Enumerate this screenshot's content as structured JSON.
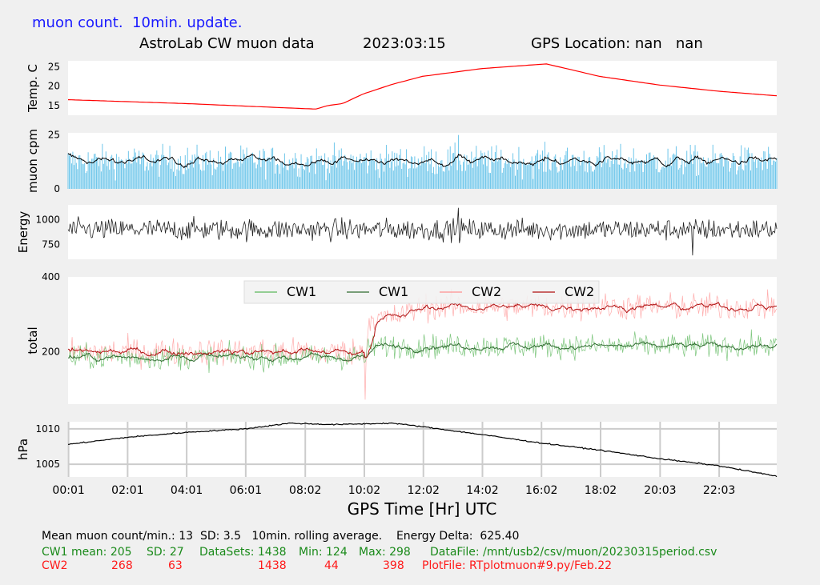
{
  "header": {
    "note": "muon count.  10min. update.",
    "title": "AstroLab CW muon data",
    "date": "2023:03:15",
    "gps": "GPS Location: nan   nan"
  },
  "colors": {
    "temp": "#ff0000",
    "muon_bar": "#6ec6ea",
    "muon_avg": "#000000",
    "energy": "#222222",
    "cw1_raw": "#5cb85c",
    "cw1_avg": "#2e6b2e",
    "cw2_raw": "#ff9090",
    "cw2_avg": "#b01010",
    "pressure": "#000000",
    "panel_bg": "#ffffff",
    "fig_bg": "#f0f0f0",
    "grid": "#cccccc"
  },
  "chart_data": [
    {
      "type": "line",
      "ylabel": "Temp. C",
      "yticks": [
        15,
        20,
        25
      ],
      "ylim": [
        12.5,
        26.5
      ],
      "xlim": [
        0,
        24
      ],
      "x": [
        0,
        4,
        8,
        8.4,
        8.8,
        9.3,
        10,
        11,
        12,
        14,
        16,
        16.2,
        18,
        20,
        22,
        24
      ],
      "y": [
        16.5,
        15.5,
        14.2,
        14.1,
        15,
        15.5,
        18,
        20.5,
        22.5,
        24.5,
        25.6,
        25.7,
        22.5,
        20.3,
        18.7,
        17.5
      ]
    },
    {
      "type": "bar",
      "ylabel": "muon cpm",
      "yticks": [
        0,
        25
      ],
      "ylim": [
        0,
        26
      ],
      "mean": 13,
      "sd": 3.5,
      "series": [
        {
          "name": "count",
          "style": "bar"
        },
        {
          "name": "rolling",
          "style": "line"
        }
      ]
    },
    {
      "type": "line",
      "ylabel": "Energy",
      "yticks": [
        750,
        1000
      ],
      "ylim": [
        600,
        1150
      ],
      "mean": 900,
      "noise": 55
    },
    {
      "type": "line",
      "ylabel": "total",
      "yticks": [
        200,
        400
      ],
      "ylim": [
        60,
        400
      ],
      "legend": "top-center",
      "series": [
        {
          "name": "CW1",
          "label": "CW1",
          "style": "raw",
          "x": [
            0,
            10.1,
            10.2,
            24
          ],
          "y": [
            185,
            185,
            215,
            215
          ]
        },
        {
          "name": "CW1",
          "label": "CW1",
          "style": "avg"
        },
        {
          "name": "CW2",
          "label": "CW2",
          "style": "raw",
          "x": [
            0,
            10.1,
            10.2,
            11,
            12,
            24
          ],
          "y": [
            200,
            200,
            290,
            290,
            320,
            320
          ]
        },
        {
          "name": "CW2",
          "label": "CW2",
          "style": "avg"
        }
      ]
    },
    {
      "type": "line",
      "ylabel": "hPa",
      "yticks": [
        1005,
        1010
      ],
      "ylim": [
        1003.2,
        1011
      ],
      "x": [
        0,
        2,
        4,
        6,
        7.5,
        9,
        10,
        11,
        12,
        14,
        16,
        18,
        20,
        22,
        24
      ],
      "y": [
        1007.8,
        1008.8,
        1009.5,
        1010,
        1010.8,
        1010.6,
        1010.7,
        1010.8,
        1010.3,
        1009.2,
        1008,
        1007,
        1005.8,
        1004.8,
        1003.3
      ]
    }
  ],
  "xaxis": {
    "label": "GPS Time  [Hr] UTC",
    "ticks": [
      {
        "v": 0.0167,
        "label": "00:01"
      },
      {
        "v": 2.0167,
        "label": "02:01"
      },
      {
        "v": 4.0167,
        "label": "04:01"
      },
      {
        "v": 6.0167,
        "label": "06:01"
      },
      {
        "v": 8.0333,
        "label": "08:02"
      },
      {
        "v": 10.0333,
        "label": "10:02"
      },
      {
        "v": 12.0333,
        "label": "12:02"
      },
      {
        "v": 14.0333,
        "label": "14:02"
      },
      {
        "v": 16.0333,
        "label": "16:02"
      },
      {
        "v": 18.0333,
        "label": "18:02"
      },
      {
        "v": 20.05,
        "label": "20:03"
      },
      {
        "v": 22.05,
        "label": "22:03"
      }
    ]
  },
  "footer": {
    "line1": "Mean muon count/min.: 13  SD: 3.5   10min. rolling average.    Energy Delta:  625.40",
    "cw1": {
      "label": "CW1 mean: 205",
      "sd": "SD: 27",
      "datasets": "DataSets: 1438",
      "min": "Min: 124",
      "max": "Max: 298",
      "file": "DataFile: /mnt/usb2/csv/muon/20230315period.csv"
    },
    "cw2": {
      "label": "CW2",
      "mean": "268",
      "sd": "63",
      "datasets": "1438",
      "min": "44",
      "max": "398",
      "file": "PlotFile: RTplotmuon#9.py/Feb.22"
    }
  }
}
